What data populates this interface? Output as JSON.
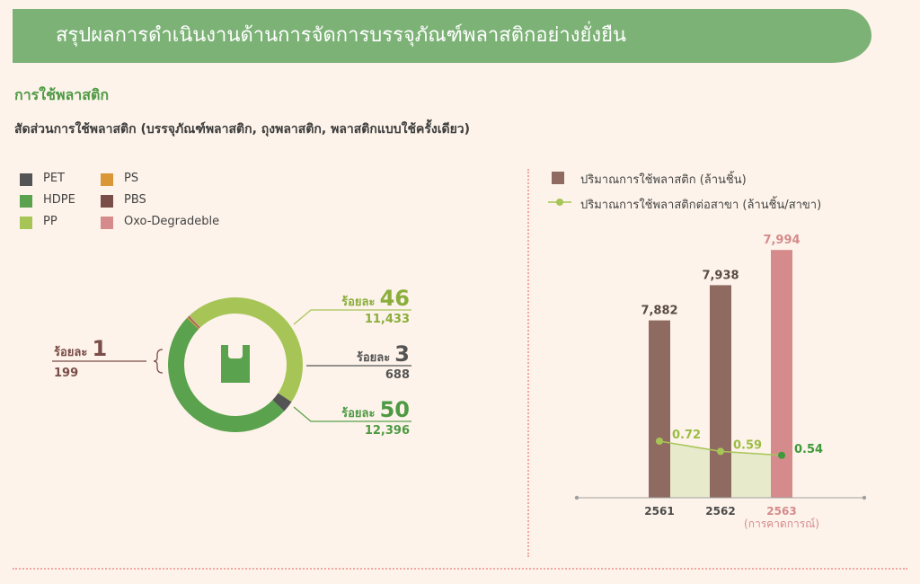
{
  "header": {
    "title": "สรุปผลการดำเนินงานด้านการจัดการบรรจุภัณฑ์พลาสติกอย่างยั่งยืน"
  },
  "section": {
    "title": "การใช้พลาสติก",
    "subtitle": "สัดส่วนการใช้พลาสติก (บรรจุภัณฑ์พลาสติก, ถุงพลาสติก, พลาสติกแบบใช้ครั้งเดียว)"
  },
  "colors": {
    "PET": "#545454",
    "HDPE": "#5aa24d",
    "PP": "#a7c557",
    "PS": "#d99737",
    "PBS": "#7a4d48",
    "Oxo-Degradeble": "#d58b8c",
    "bar_actual": "#8f6a61",
    "bar_forecast": "#d58b8c",
    "line": "#a7c557",
    "line_last_point": "#3e9a3a",
    "area": "#e3e8c6"
  },
  "donut_legend": [
    {
      "name": "PET",
      "color": "#545454"
    },
    {
      "name": "PS",
      "color": "#d99737"
    },
    {
      "name": "HDPE",
      "color": "#5aa24d"
    },
    {
      "name": "PBS",
      "color": "#7a4d48"
    },
    {
      "name": "PP",
      "color": "#a7c557"
    },
    {
      "name": "Oxo-Degradeble",
      "color": "#d58b8c"
    }
  ],
  "bar_legend": {
    "bar_label": "ปริมาณการใช้พลาสติก (ล้านชิ้น)",
    "line_label": "ปริมาณการใช้พลาสติกต่อสาขา (ล้านชิ้น/สาขา)"
  },
  "center_icon": "shopping-bag-icon",
  "chart_data": [
    {
      "type": "pie",
      "variant": "donut",
      "slices": [
        {
          "name": "PP",
          "percent_label": "46",
          "value": 11433,
          "value_label": "11,433",
          "color": "#a7c557"
        },
        {
          "name": "PET",
          "percent_label": "3",
          "value": 688,
          "value_label": "688",
          "color": "#545454"
        },
        {
          "name": "HDPE",
          "percent_label": "50",
          "value": 12396,
          "value_label": "12,396",
          "color": "#5aa24d"
        },
        {
          "name": "PS",
          "value": 80,
          "color": "#d99737"
        },
        {
          "name": "PBS",
          "value": 60,
          "color": "#7a4d48"
        },
        {
          "name": "Oxo-Degradeble",
          "value": 59,
          "color": "#d58b8c"
        }
      ],
      "small_group": {
        "percent_label": "1",
        "value_label": "199",
        "members": [
          "PS",
          "PBS",
          "Oxo-Degradeble"
        ]
      },
      "percent_prefix": "ร้อยละ",
      "legend_position": "top-left"
    },
    {
      "type": "bar",
      "categories": [
        "2561",
        "2562",
        "2563"
      ],
      "category_note": "(การคาดการณ์)",
      "forecast_index": 2,
      "series": [
        {
          "name": "ปริมาณการใช้พลาสติก (ล้านชิ้น)",
          "type": "bar",
          "values": [
            7882,
            7938,
            7994
          ],
          "labels": [
            "7,882",
            "7,938",
            "7,994"
          ]
        },
        {
          "name": "ปริมาณการใช้พลาสติกต่อสาขา (ล้านชิ้น/สาขา)",
          "type": "line",
          "values": [
            0.72,
            0.59,
            0.54
          ],
          "labels": [
            "0.72",
            "0.59",
            "0.54"
          ]
        }
      ],
      "bar_axis_range": [
        7600,
        8000
      ],
      "line_axis_range": [
        0,
        1.2
      ],
      "grid": false,
      "legend_position": "top-left"
    }
  ]
}
